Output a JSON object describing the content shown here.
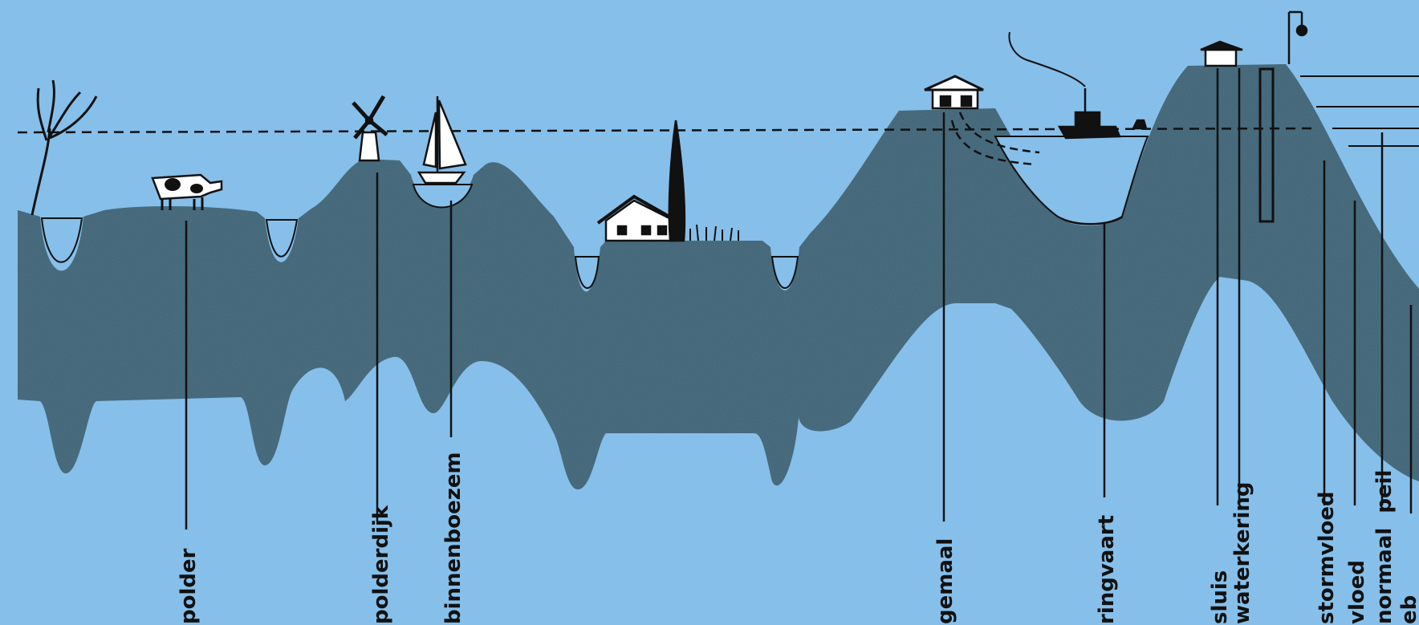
{
  "colors": {
    "sky": "#86bfea",
    "ground": "#4f7488",
    "ink": "#111111",
    "water": "#cfe6f7"
  },
  "labels": {
    "polder": "polder",
    "polderdijk": "polderdijk",
    "binnenboezem": "binnenboezem",
    "gemaal": "gemaal",
    "ringvaart": "ringvaart",
    "sluis": "sluis",
    "waterkering": "waterkering",
    "stormvloed": "stormvloed",
    "vloed": "vloed",
    "normaal_peil": "normaal  peil",
    "eb": "eb"
  },
  "icons": {
    "tree": "willow-tree-icon",
    "cow": "cow-icon",
    "windmill": "windmill-icon",
    "sailboat": "sailboat-icon",
    "farmhouse": "farmhouse-icon",
    "pumping_station": "pumping-station-icon",
    "steamboat": "steamboat-icon",
    "sluice_house": "sluice-house-icon"
  }
}
